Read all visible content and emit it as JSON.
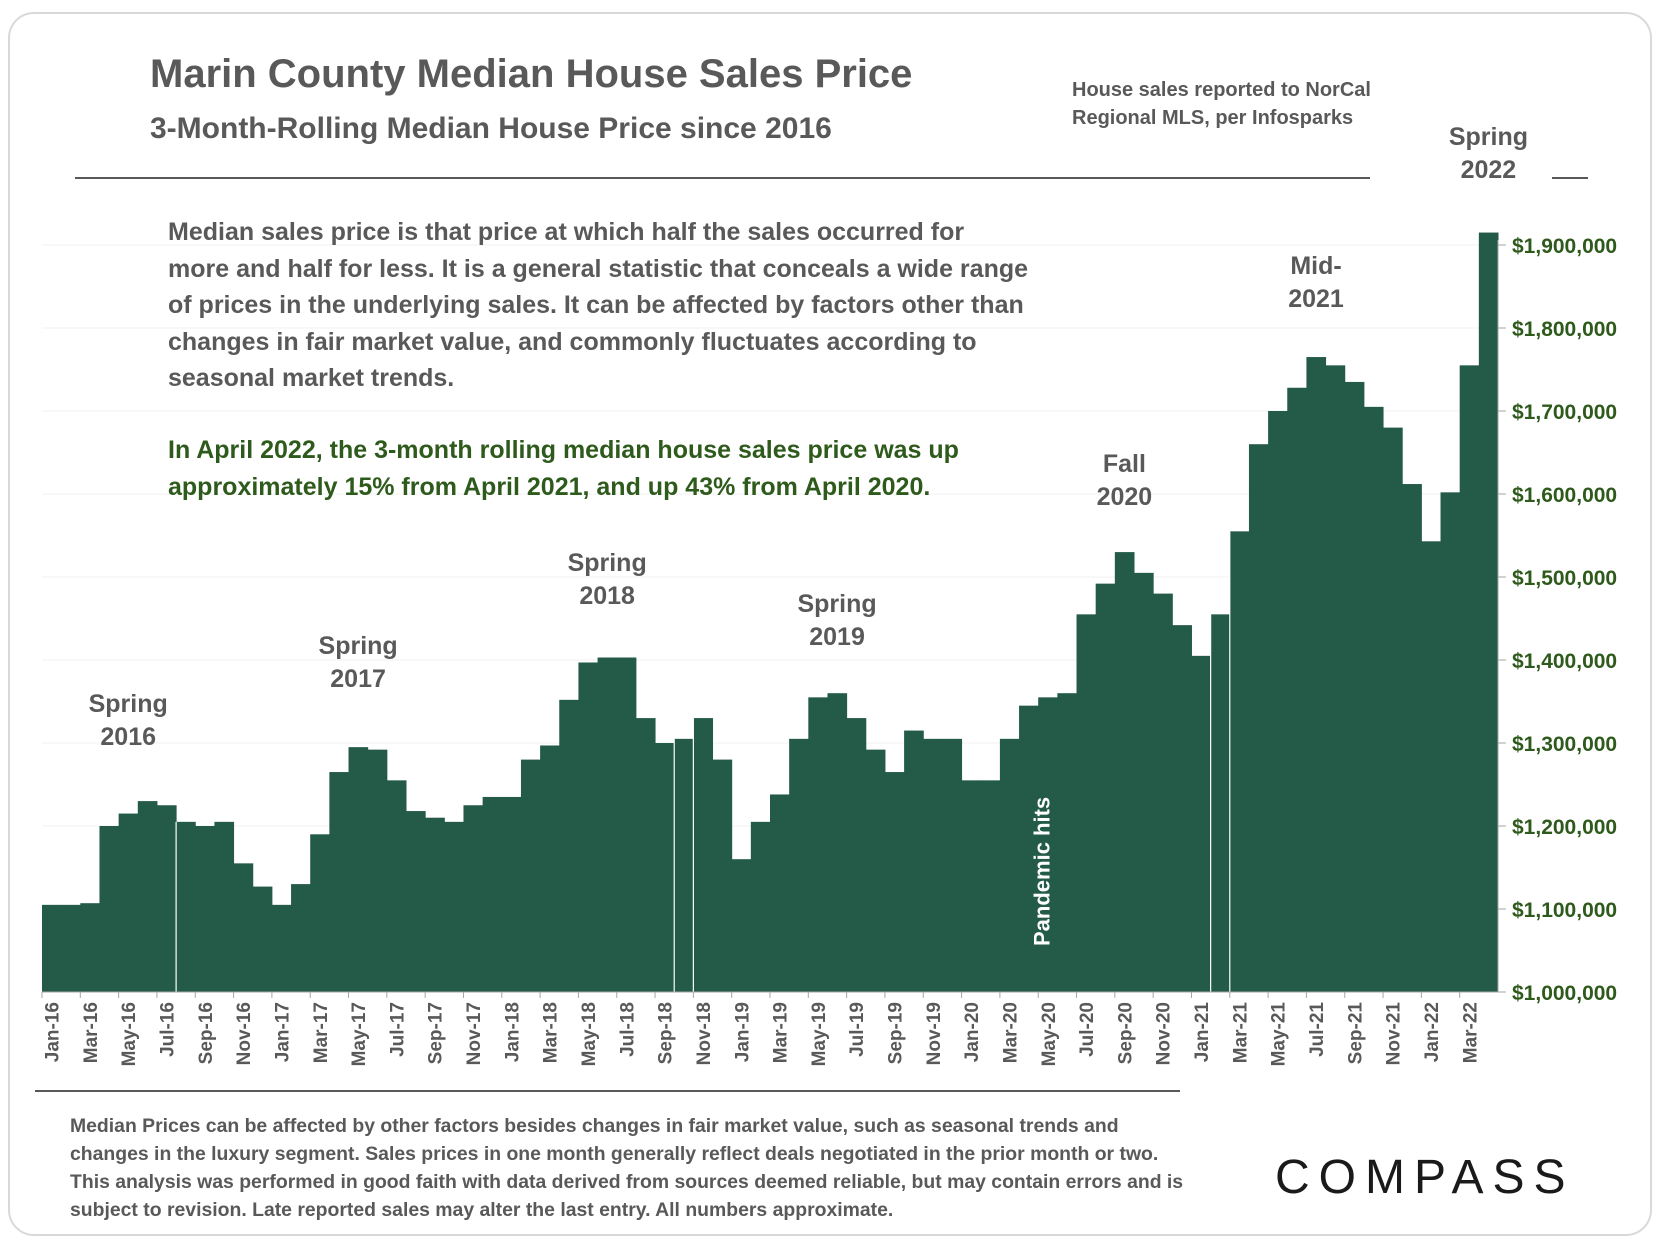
{
  "title": "Marin County Median House Sales Price",
  "subtitle": "3-Month-Rolling Median House Price since 2016",
  "source": "House sales reported to NorCal Regional MLS, per Infosparks",
  "note": "Median sales price is that price at which half the sales occurred for more and half for less. It is a general statistic that conceals a wide range of prices in the underlying sales. It can be affected by factors other than changes in fair market value, and commonly fluctuates according to seasonal market trends.",
  "highlight": "In April 2022, the 3-month rolling median house sales price was up approximately 15% from April 2021, and up 43% from April 2020.",
  "footnote": "Median Prices can be affected by other factors besides changes in fair market value, such as seasonal trends and changes in the luxury segment. Sales prices in one month generally reflect deals negotiated in the prior month or two. This analysis was performed in good faith with data derived from sources deemed reliable, but may contain errors and is subject to revision. Late reported sales may alter the last entry. All numbers approximate.",
  "logo": "COMPASS",
  "colors": {
    "bar": "#235a48",
    "axis_label": "#2e5a1c",
    "text": "#595959"
  },
  "chart_data": {
    "type": "bar",
    "title": "Marin County Median House Sales Price",
    "xlabel": "",
    "ylabel": "",
    "ylim": [
      1000000,
      1900000
    ],
    "y_ticks": [
      "$1,000,000",
      "$1,100,000",
      "$1,200,000",
      "$1,300,000",
      "$1,400,000",
      "$1,500,000",
      "$1,600,000",
      "$1,700,000",
      "$1,800,000",
      "$1,900,000"
    ],
    "grid": true,
    "categories": [
      "Jan-16",
      "Feb-16",
      "Mar-16",
      "Apr-16",
      "May-16",
      "Jun-16",
      "Jul-16",
      "Aug-16",
      "Sep-16",
      "Oct-16",
      "Nov-16",
      "Dec-16",
      "Jan-17",
      "Feb-17",
      "Mar-17",
      "Apr-17",
      "May-17",
      "Jun-17",
      "Jul-17",
      "Aug-17",
      "Sep-17",
      "Oct-17",
      "Nov-17",
      "Dec-17",
      "Jan-18",
      "Feb-18",
      "Mar-18",
      "Apr-18",
      "May-18",
      "Jun-18",
      "Jul-18",
      "Aug-18",
      "Sep-18",
      "Oct-18",
      "Nov-18",
      "Dec-18",
      "Jan-19",
      "Feb-19",
      "Mar-19",
      "Apr-19",
      "May-19",
      "Jun-19",
      "Jul-19",
      "Aug-19",
      "Sep-19",
      "Oct-19",
      "Nov-19",
      "Dec-19",
      "Jan-20",
      "Feb-20",
      "Mar-20",
      "Apr-20",
      "May-20",
      "Jun-20",
      "Jul-20",
      "Aug-20",
      "Sep-20",
      "Oct-20",
      "Nov-20",
      "Dec-20",
      "Jan-21",
      "Feb-21",
      "Mar-21",
      "Apr-21",
      "May-21",
      "Jun-21",
      "Jul-21",
      "Aug-21",
      "Sep-21",
      "Oct-21",
      "Nov-21",
      "Dec-21",
      "Jan-22",
      "Feb-22",
      "Mar-22",
      "Apr-22"
    ],
    "tick_labels": [
      "Jan-16",
      "Mar-16",
      "May-16",
      "Jul-16",
      "Sep-16",
      "Nov-16",
      "Jan-17",
      "Mar-17",
      "May-17",
      "Jul-17",
      "Sep-17",
      "Nov-17",
      "Jan-18",
      "Mar-18",
      "May-18",
      "Jul-18",
      "Sep-18",
      "Nov-18",
      "Jan-19",
      "Mar-19",
      "May-19",
      "Jul-19",
      "Sep-19",
      "Nov-19",
      "Jan-20",
      "Mar-20",
      "May-20",
      "Jul-20",
      "Sep-20",
      "Nov-20",
      "Jan-21",
      "Mar-21",
      "May-21",
      "Jul-21",
      "Sep-21",
      "Nov-21",
      "Jan-22",
      "Mar-22"
    ],
    "values": [
      1105000,
      1105000,
      1107000,
      1200000,
      1215000,
      1230000,
      1225000,
      1205000,
      1200000,
      1205000,
      1155000,
      1127000,
      1105000,
      1130000,
      1190000,
      1265000,
      1295000,
      1292000,
      1255000,
      1218000,
      1210000,
      1205000,
      1225000,
      1235000,
      1235000,
      1280000,
      1297000,
      1352000,
      1397000,
      1403000,
      1403000,
      1330000,
      1300000,
      1305000,
      1330000,
      1280000,
      1160000,
      1205000,
      1238000,
      1305000,
      1355000,
      1360000,
      1330000,
      1292000,
      1265000,
      1315000,
      1305000,
      1305000,
      1255000,
      1255000,
      1305000,
      1345000,
      1355000,
      1360000,
      1455000,
      1492000,
      1530000,
      1505000,
      1480000,
      1442000,
      1405000,
      1455000,
      1555000,
      1660000,
      1700000,
      1728000,
      1765000,
      1755000,
      1735000,
      1705000,
      1680000,
      1612000,
      1543000,
      1602000,
      1755000,
      1915000
    ],
    "annotations": [
      {
        "text": "Spring 2016",
        "lines": [
          "Spring",
          "2016"
        ],
        "category": "May-16"
      },
      {
        "text": "Spring 2017",
        "lines": [
          "Spring",
          "2017"
        ],
        "category": "May-17"
      },
      {
        "text": "Spring 2018",
        "lines": [
          "Spring",
          "2018"
        ],
        "category": "Jun-18"
      },
      {
        "text": "Spring 2019",
        "lines": [
          "Spring",
          "2019"
        ],
        "category": "Jun-19"
      },
      {
        "text": "Fall 2020",
        "lines": [
          "Fall",
          "2020"
        ],
        "category": "Sep-20"
      },
      {
        "text": "Mid-2021",
        "lines": [
          "Mid-",
          "2021"
        ],
        "category": "Jul-21"
      },
      {
        "text": "Spring 2022",
        "lines": [
          "Spring",
          "2022"
        ],
        "category": "Apr-22"
      },
      {
        "text": "Pandemic hits",
        "lines": [
          "Pandemic hits"
        ],
        "category": "Mar-20",
        "rotated": true
      }
    ]
  }
}
